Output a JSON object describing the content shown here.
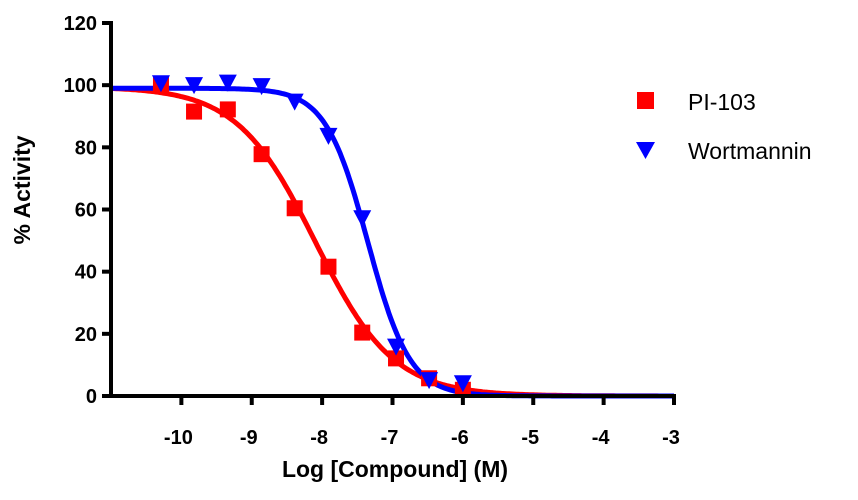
{
  "chart_data": {
    "type": "scatter",
    "xlabel": "Log [Compound] (M)",
    "ylabel": "% Activity",
    "xlim": [
      -11,
      -3
    ],
    "ylim": [
      0,
      120
    ],
    "xticks": [
      -10,
      -9,
      -8,
      -7,
      -6,
      -5,
      -4,
      -3
    ],
    "yticks": [
      0,
      20,
      40,
      60,
      80,
      100,
      120
    ],
    "grid": false,
    "legend_position": "right",
    "series": [
      {
        "name": "PI-103",
        "color": "#ff0000",
        "marker": "square",
        "x": [
          -10.29,
          -9.82,
          -9.34,
          -8.86,
          -8.39,
          -7.91,
          -7.43,
          -6.95,
          -6.48,
          -6.0
        ],
        "y": [
          100,
          91.5,
          92.2,
          77.8,
          60.4,
          41.6,
          20.4,
          12.1,
          5.7,
          2.0
        ],
        "fit": {
          "model": "4PL",
          "top": 99.5,
          "bottom": 0,
          "logIC50": -8.1,
          "hill": 0.78
        }
      },
      {
        "name": "Wortmannin",
        "color": "#0000ff",
        "marker": "triangle-down",
        "x": [
          -10.29,
          -9.82,
          -9.34,
          -8.86,
          -8.39,
          -7.91,
          -7.43,
          -6.95,
          -6.48,
          -6.0
        ],
        "y": [
          100.6,
          100,
          100.8,
          99.7,
          94.7,
          83.7,
          57.2,
          15.9,
          5.1,
          4.1
        ],
        "fit": {
          "model": "4PL",
          "top": 99,
          "bottom": 0,
          "logIC50": -7.35,
          "hill": 1.45
        }
      }
    ]
  }
}
